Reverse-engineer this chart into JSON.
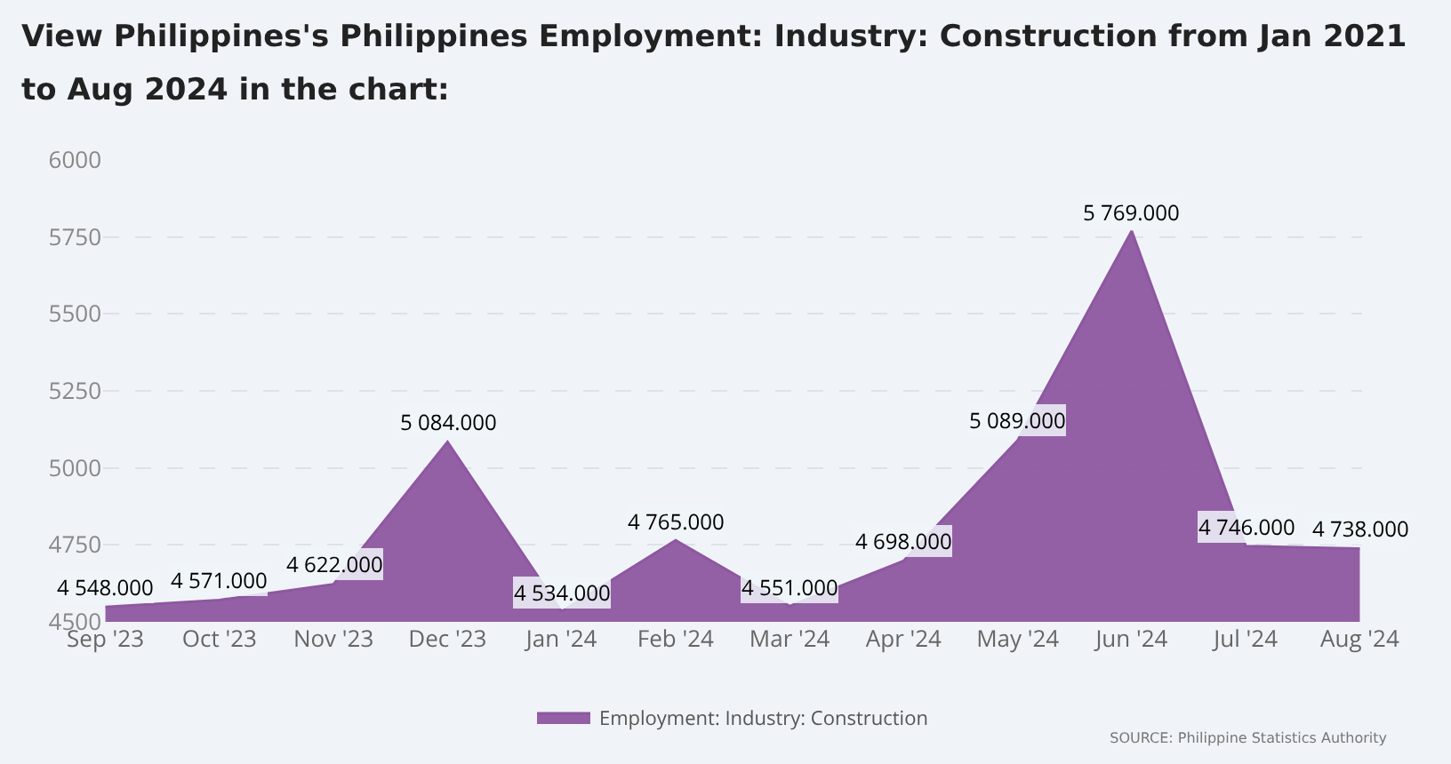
{
  "chart_data": {
    "type": "area",
    "title": "View Philippines's Philippines Employment: Industry: Construction from Jan 2021 to Aug 2024 in the chart:",
    "categories": [
      "Sep '23",
      "Oct '23",
      "Nov '23",
      "Dec '23",
      "Jan '24",
      "Feb '24",
      "Mar '24",
      "Apr '24",
      "May '24",
      "Jun '24",
      "Jul '24",
      "Aug '24"
    ],
    "series": [
      {
        "name": "Employment: Industry: Construction",
        "color": "#8e57a0",
        "values": [
          4548,
          4571,
          4622,
          5084,
          4534,
          4765,
          4551,
          4698,
          5089,
          5769,
          4746,
          4738
        ],
        "value_labels": [
          "4 548.000",
          "4 571.000",
          "4 622.000",
          "5 084.000",
          "4 534.000",
          "4 765.000",
          "4 551.000",
          "4 698.000",
          "5 089.000",
          "5 769.000",
          "4 746.000",
          "4 738.000"
        ]
      }
    ],
    "ylim": [
      4500,
      6000
    ],
    "yticks": [
      4500,
      4750,
      5000,
      5250,
      5500,
      5750,
      6000
    ],
    "grid": "y",
    "legend": "bottom",
    "annotations": [
      "SOURCE: Philippine Statistics Authority"
    ]
  }
}
